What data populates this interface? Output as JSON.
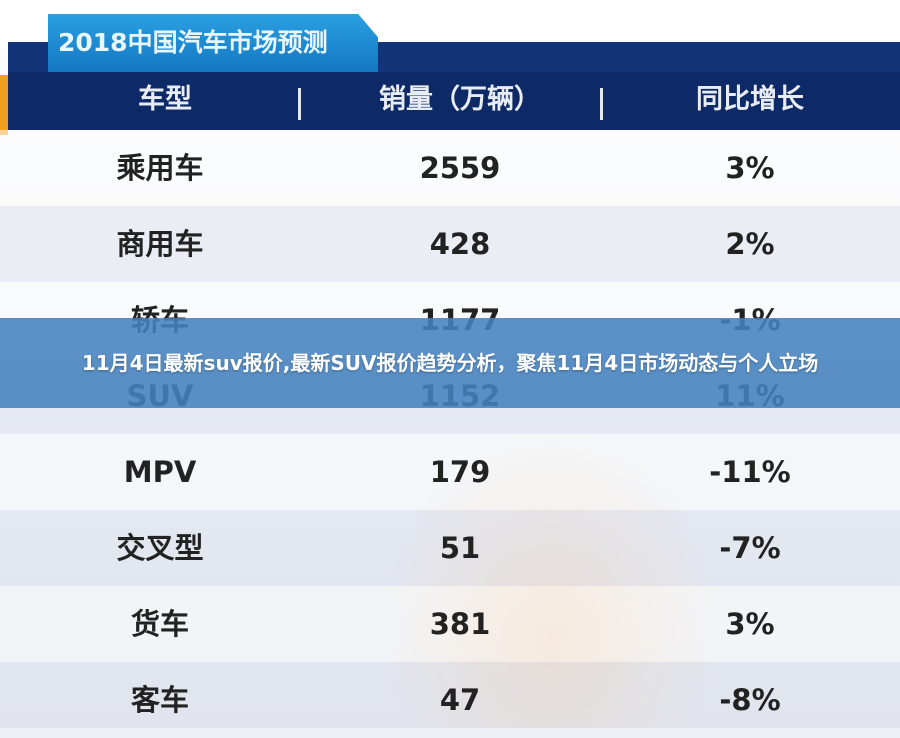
{
  "table": {
    "title": "2018中国汽车市场预测",
    "headers": [
      "车型",
      "销量（万辆）",
      "同比增长"
    ],
    "rows": [
      {
        "type": "乘用车",
        "sales": "2559",
        "growth": "3%"
      },
      {
        "type": "商用车",
        "sales": "428",
        "growth": "2%"
      },
      {
        "type": "轿车",
        "sales": "1177",
        "growth": "-1%"
      },
      {
        "type": "SUV",
        "sales": "1152",
        "growth": "11%"
      },
      {
        "type": "MPV",
        "sales": "179",
        "growth": "-11%"
      },
      {
        "type": "交叉型",
        "sales": "51",
        "growth": "-7%"
      },
      {
        "type": "货车",
        "sales": "381",
        "growth": "3%"
      },
      {
        "type": "客车",
        "sales": "47",
        "growth": "-8%"
      }
    ]
  },
  "caption": "11月4日最新suv报价,最新SUV报价趋势分析，聚焦11月4日市场动态与个人立场",
  "colors": {
    "header_bg": "#0e2a66",
    "title_tab": "#1a8ad4",
    "banner": "#4682be"
  }
}
